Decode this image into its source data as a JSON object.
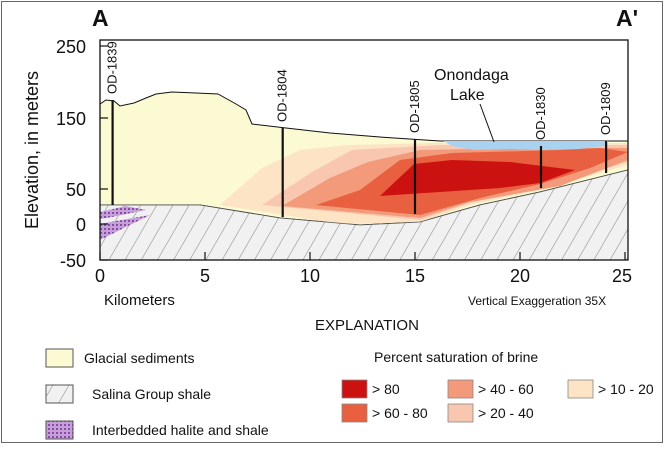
{
  "section": {
    "start_label": "A",
    "end_label": "A'",
    "y_axis_label": "Elevation, in meters",
    "y_ticks": [
      "250",
      "150",
      "50",
      "0",
      "-50"
    ],
    "x_ticks": [
      "0",
      "5",
      "10",
      "15",
      "20",
      "25"
    ],
    "x_axis_label": "Kilometers",
    "vertical_exaggeration": "Vertical Exaggeration 35X",
    "lake_label_line1": "Onondaga",
    "lake_label_line2": "Lake"
  },
  "wells": [
    {
      "id": "OD-1839",
      "km": 0.6
    },
    {
      "id": "OD-1804",
      "km": 8.7
    },
    {
      "id": "OD-1805",
      "km": 15.0
    },
    {
      "id": "OD-1830",
      "km": 21.0
    },
    {
      "id": "OD-1809",
      "km": 24.1
    }
  ],
  "legend": {
    "title": "EXPLANATION",
    "units": [
      {
        "label": "Glacial sediments"
      },
      {
        "label": "Salina Group shale"
      },
      {
        "label": "Interbedded halite and shale"
      }
    ],
    "brine_title": "Percent saturation of brine",
    "brine_classes": [
      {
        "label": "> 80",
        "color": "#cc1111"
      },
      {
        "label": "> 60 - 80",
        "color": "#e86040"
      },
      {
        "label": "> 40 - 60",
        "color": "#f29a7a"
      },
      {
        "label": "> 20 - 40",
        "color": "#f9c7b0"
      },
      {
        "label": "> 10 - 20",
        "color": "#fde4c4"
      }
    ]
  },
  "colors": {
    "glacial": "#fcfad2",
    "lake": "#a8d2f0",
    "frame": "#111111"
  }
}
